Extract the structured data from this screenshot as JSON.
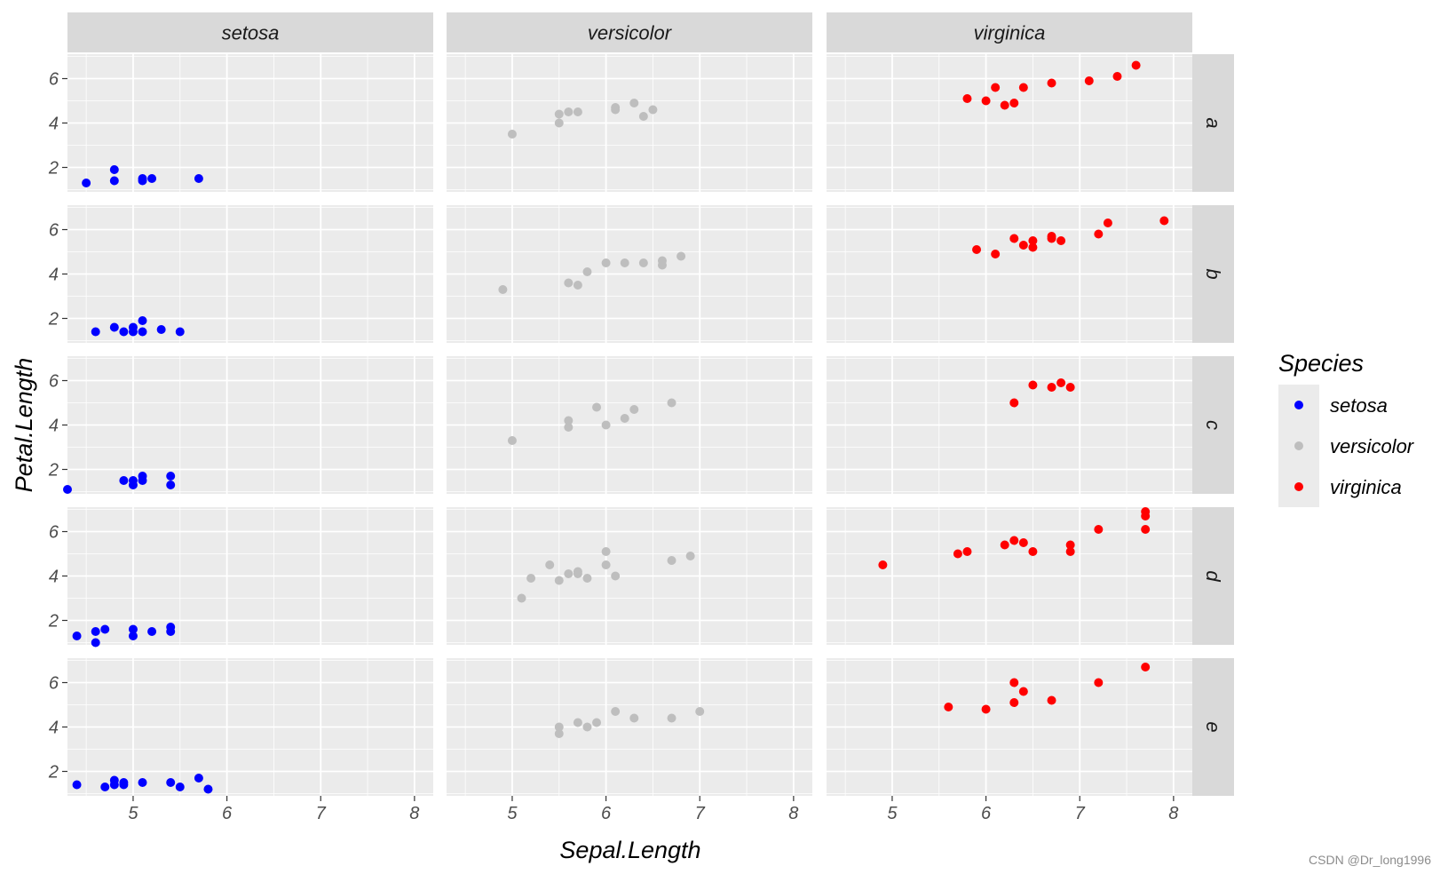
{
  "chart_data": {
    "type": "scatter",
    "facet_cols": [
      "setosa",
      "versicolor",
      "virginica"
    ],
    "facet_rows": [
      "a",
      "b",
      "c",
      "d",
      "e"
    ],
    "xlabel": "Sepal.Length",
    "ylabel": "Petal.Length",
    "xlim": [
      4.3,
      8.2
    ],
    "ylim": [
      0.9,
      7.1
    ],
    "x_ticks": [
      5,
      6,
      7,
      8
    ],
    "y_ticks": [
      2,
      4,
      6
    ],
    "grid": true,
    "legend": {
      "title": "Species",
      "placement": "right",
      "entries": [
        "setosa",
        "versicolor",
        "virginica"
      ]
    },
    "colors": {
      "setosa": "#0000ff",
      "versicolor": "#bebebe",
      "virginica": "#ff0000",
      "panel_bg": "#ebebeb",
      "strip_bg": "#d9d9d9",
      "grid": "#ffffff"
    },
    "panels": [
      {
        "row": "a",
        "col": "setosa",
        "points": [
          [
            4.5,
            1.3
          ],
          [
            4.8,
            1.9
          ],
          [
            4.8,
            1.4
          ],
          [
            5.1,
            1.5
          ],
          [
            5.1,
            1.4
          ],
          [
            5.2,
            1.5
          ],
          [
            5.7,
            1.5
          ]
        ]
      },
      {
        "row": "a",
        "col": "versicolor",
        "points": [
          [
            5.0,
            3.5
          ],
          [
            5.5,
            4.4
          ],
          [
            5.5,
            4.0
          ],
          [
            5.6,
            4.5
          ],
          [
            5.7,
            4.5
          ],
          [
            6.1,
            4.7
          ],
          [
            6.1,
            4.6
          ],
          [
            6.3,
            4.9
          ],
          [
            6.4,
            4.3
          ],
          [
            6.5,
            4.6
          ]
        ]
      },
      {
        "row": "a",
        "col": "virginica",
        "points": [
          [
            5.8,
            5.1
          ],
          [
            6.0,
            5.0
          ],
          [
            6.1,
            5.6
          ],
          [
            6.2,
            4.8
          ],
          [
            6.3,
            4.9
          ],
          [
            6.4,
            5.6
          ],
          [
            6.7,
            5.8
          ],
          [
            7.1,
            5.9
          ],
          [
            7.4,
            6.1
          ],
          [
            7.6,
            6.6
          ]
        ]
      },
      {
        "row": "b",
        "col": "setosa",
        "points": [
          [
            4.6,
            1.4
          ],
          [
            4.8,
            1.6
          ],
          [
            4.9,
            1.4
          ],
          [
            5.0,
            1.6
          ],
          [
            5.0,
            1.4
          ],
          [
            5.1,
            1.9
          ],
          [
            5.1,
            1.4
          ],
          [
            5.3,
            1.5
          ],
          [
            5.5,
            1.4
          ]
        ]
      },
      {
        "row": "b",
        "col": "versicolor",
        "points": [
          [
            4.9,
            3.3
          ],
          [
            5.6,
            3.6
          ],
          [
            5.7,
            3.5
          ],
          [
            5.8,
            4.1
          ],
          [
            6.0,
            4.5
          ],
          [
            6.2,
            4.5
          ],
          [
            6.4,
            4.5
          ],
          [
            6.6,
            4.6
          ],
          [
            6.6,
            4.4
          ],
          [
            6.8,
            4.8
          ]
        ]
      },
      {
        "row": "b",
        "col": "virginica",
        "points": [
          [
            5.9,
            5.1
          ],
          [
            6.1,
            4.9
          ],
          [
            6.3,
            5.6
          ],
          [
            6.4,
            5.3
          ],
          [
            6.5,
            5.5
          ],
          [
            6.5,
            5.2
          ],
          [
            6.7,
            5.7
          ],
          [
            6.7,
            5.6
          ],
          [
            6.8,
            5.5
          ],
          [
            7.2,
            5.8
          ],
          [
            7.3,
            6.3
          ],
          [
            7.9,
            6.4
          ]
        ]
      },
      {
        "row": "c",
        "col": "setosa",
        "points": [
          [
            4.3,
            1.1
          ],
          [
            4.9,
            1.5
          ],
          [
            5.0,
            1.5
          ],
          [
            5.0,
            1.3
          ],
          [
            5.1,
            1.7
          ],
          [
            5.1,
            1.5
          ],
          [
            5.4,
            1.7
          ],
          [
            5.4,
            1.3
          ]
        ]
      },
      {
        "row": "c",
        "col": "versicolor",
        "points": [
          [
            5.0,
            3.3
          ],
          [
            5.6,
            4.2
          ],
          [
            5.6,
            3.9
          ],
          [
            5.9,
            4.8
          ],
          [
            6.0,
            4.0
          ],
          [
            6.2,
            4.3
          ],
          [
            6.3,
            4.7
          ],
          [
            6.7,
            5.0
          ]
        ]
      },
      {
        "row": "c",
        "col": "virginica",
        "points": [
          [
            6.3,
            5.0
          ],
          [
            6.5,
            5.8
          ],
          [
            6.7,
            5.7
          ],
          [
            6.8,
            5.9
          ],
          [
            6.9,
            5.7
          ]
        ]
      },
      {
        "row": "d",
        "col": "setosa",
        "points": [
          [
            4.4,
            1.3
          ],
          [
            4.6,
            1.5
          ],
          [
            4.6,
            1.0
          ],
          [
            4.7,
            1.6
          ],
          [
            5.0,
            1.6
          ],
          [
            5.0,
            1.3
          ],
          [
            5.2,
            1.5
          ],
          [
            5.4,
            1.7
          ],
          [
            5.4,
            1.5
          ]
        ]
      },
      {
        "row": "d",
        "col": "versicolor",
        "points": [
          [
            5.1,
            3.0
          ],
          [
            5.2,
            3.9
          ],
          [
            5.4,
            4.5
          ],
          [
            5.5,
            3.8
          ],
          [
            5.6,
            4.1
          ],
          [
            5.7,
            4.2
          ],
          [
            5.7,
            4.1
          ],
          [
            5.8,
            3.9
          ],
          [
            6.0,
            5.1
          ],
          [
            6.0,
            4.5
          ],
          [
            6.1,
            4.0
          ],
          [
            6.7,
            4.7
          ],
          [
            6.9,
            4.9
          ]
        ]
      },
      {
        "row": "d",
        "col": "virginica",
        "points": [
          [
            4.9,
            4.5
          ],
          [
            5.7,
            5.0
          ],
          [
            5.8,
            5.1
          ],
          [
            6.2,
            5.4
          ],
          [
            6.3,
            5.6
          ],
          [
            6.4,
            5.5
          ],
          [
            6.5,
            5.1
          ],
          [
            6.9,
            5.4
          ],
          [
            6.9,
            5.1
          ],
          [
            7.2,
            6.1
          ],
          [
            7.7,
            6.9
          ],
          [
            7.7,
            6.7
          ],
          [
            7.7,
            6.1
          ]
        ]
      },
      {
        "row": "e",
        "col": "setosa",
        "points": [
          [
            4.4,
            1.4
          ],
          [
            4.7,
            1.3
          ],
          [
            4.8,
            1.6
          ],
          [
            4.8,
            1.4
          ],
          [
            4.9,
            1.5
          ],
          [
            4.9,
            1.4
          ],
          [
            5.1,
            1.5
          ],
          [
            5.4,
            1.5
          ],
          [
            5.5,
            1.3
          ],
          [
            5.7,
            1.7
          ],
          [
            5.8,
            1.2
          ]
        ]
      },
      {
        "row": "e",
        "col": "versicolor",
        "points": [
          [
            5.5,
            4.0
          ],
          [
            5.5,
            3.7
          ],
          [
            5.7,
            4.2
          ],
          [
            5.8,
            4.0
          ],
          [
            5.9,
            4.2
          ],
          [
            6.1,
            4.7
          ],
          [
            6.3,
            4.4
          ],
          [
            6.7,
            4.4
          ],
          [
            7.0,
            4.7
          ]
        ]
      },
      {
        "row": "e",
        "col": "virginica",
        "points": [
          [
            5.6,
            4.9
          ],
          [
            6.0,
            4.8
          ],
          [
            6.3,
            6.0
          ],
          [
            6.3,
            5.1
          ],
          [
            6.4,
            5.6
          ],
          [
            6.7,
            5.2
          ],
          [
            7.2,
            6.0
          ],
          [
            7.7,
            6.7
          ]
        ]
      }
    ]
  },
  "watermark": "CSDN @Dr_long1996"
}
